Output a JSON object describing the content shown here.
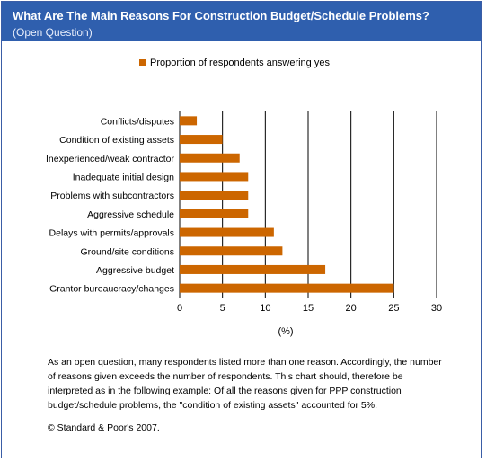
{
  "header": {
    "title": "What Are The Main Reasons For Construction Budget/Schedule Problems?",
    "subtitle": "(Open Question)"
  },
  "footer": {
    "note": "As an open question, many respondents listed more than one reason. Accordingly, the number of reasons given exceeds the number of respondents. This chart should, therefore be interpreted as in the following example: Of all the reasons given for PPP construction budget/schedule problems, the \"condition of existing assets\" accounted for 5%.",
    "copyright": "© Standard & Poor's 2007."
  },
  "colors": {
    "header_bg": "#2f5fae",
    "bar": "#cc6600",
    "grid": "#000000"
  },
  "chart_data": {
    "type": "bar",
    "orientation": "horizontal",
    "categories": [
      "Conflicts/disputes",
      "Condition of existing assets",
      "Inexperienced/weak contractor",
      "Inadequate initial design",
      "Problems with subcontractors",
      "Aggressive schedule",
      "Delays with permits/approvals",
      "Ground/site conditions",
      "Aggressive budget",
      "Grantor bureaucracy/changes"
    ],
    "series": [
      {
        "name": "Proportion of respondents answering yes",
        "values": [
          2,
          5,
          7,
          8,
          8,
          8,
          11,
          12,
          17,
          25
        ]
      }
    ],
    "xlabel": "(%)",
    "ylabel": "",
    "xlim": [
      0,
      30
    ],
    "xticks": [
      "0",
      "5",
      "10",
      "15",
      "20",
      "25",
      "30"
    ],
    "grid": true,
    "legend": "top-center"
  }
}
